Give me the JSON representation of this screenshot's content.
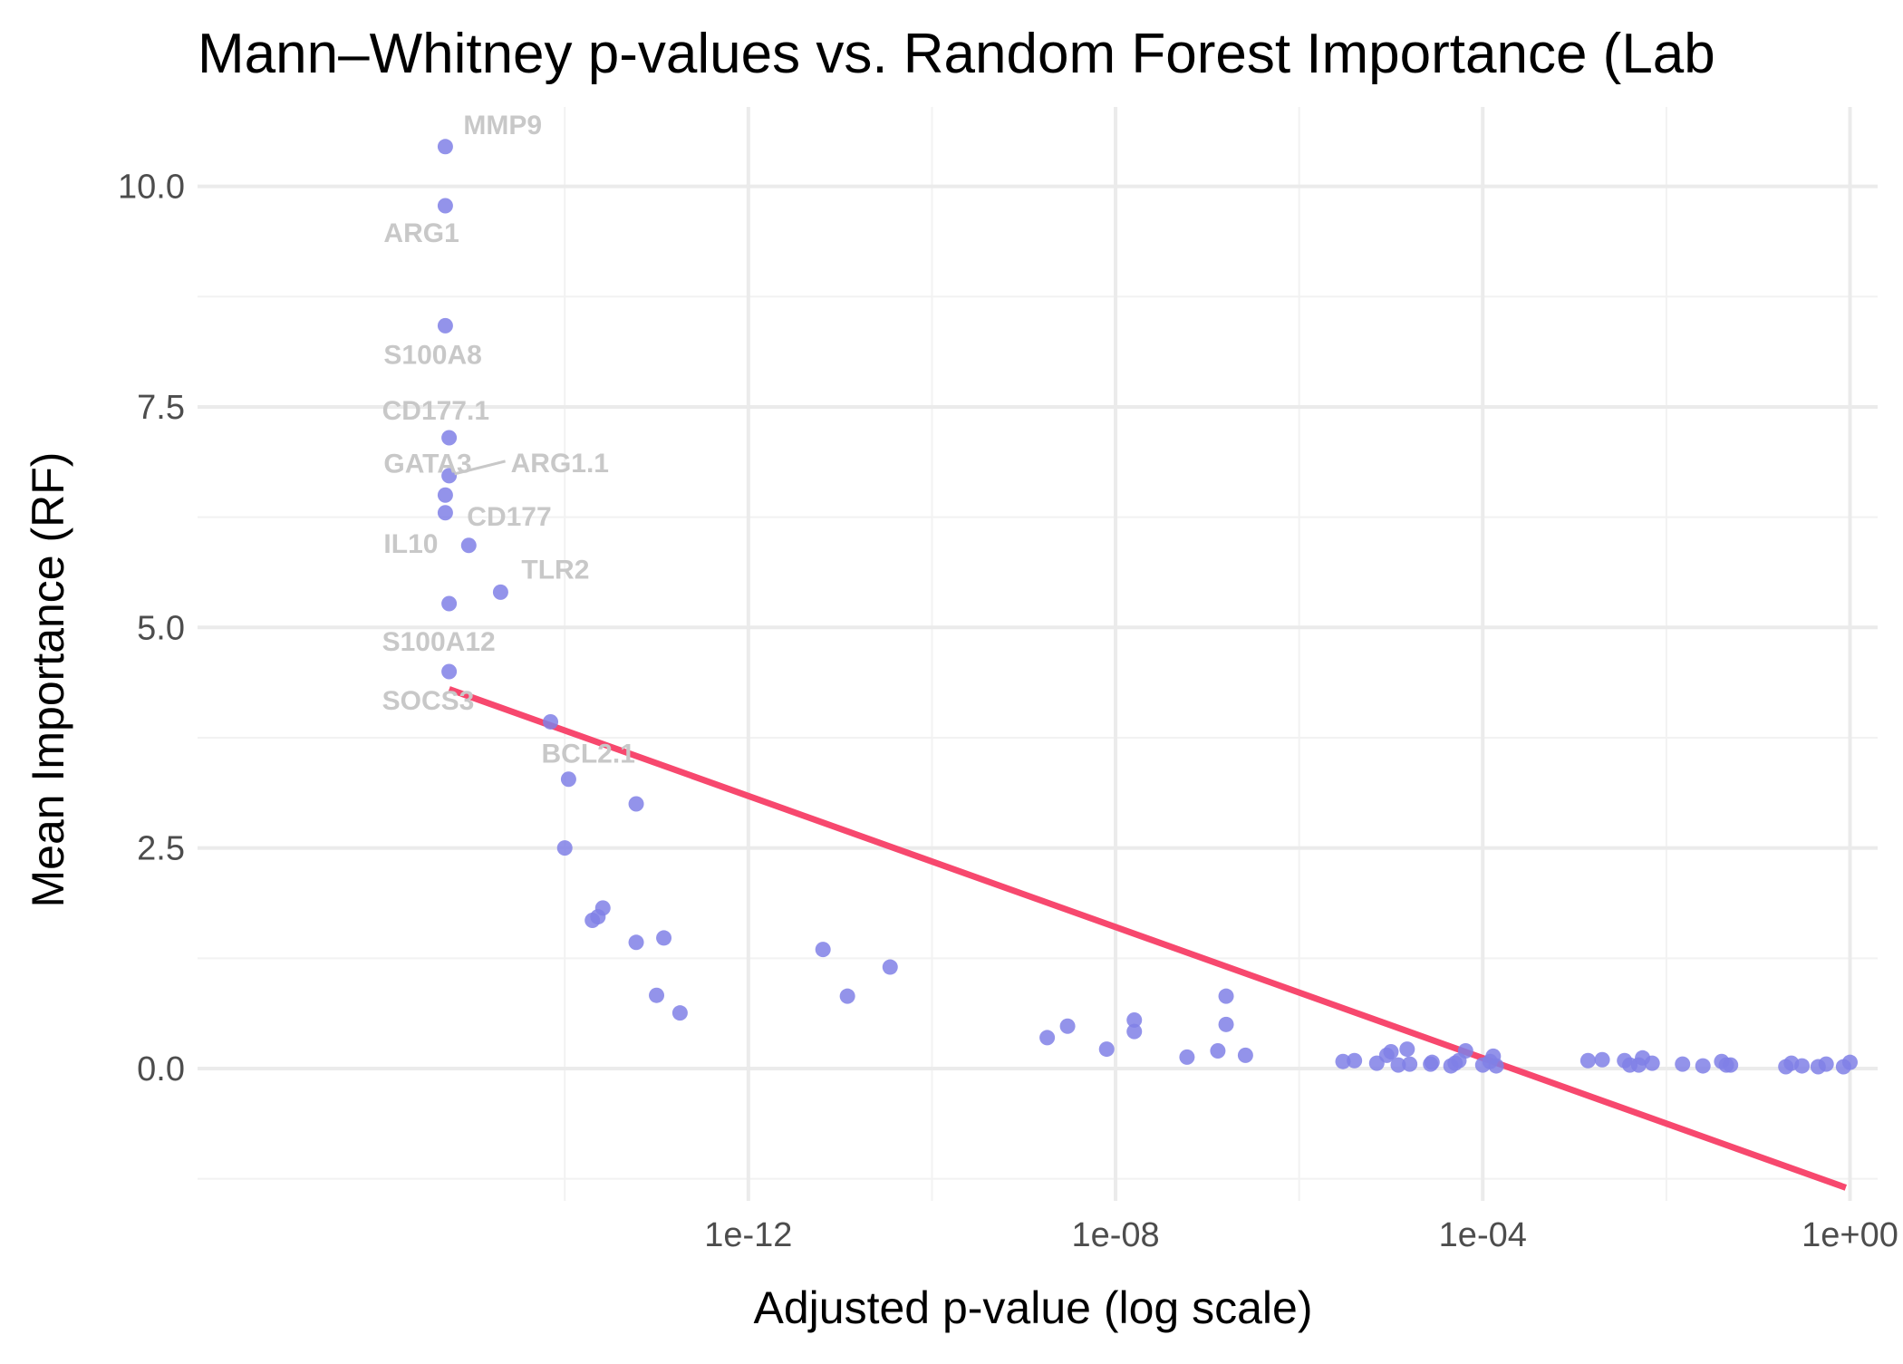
{
  "chart_data": {
    "type": "scatter",
    "title": "Mann–Whitney p-values vs. Random Forest Importance (Lab",
    "xlabel": "Adjusted p-value (log scale)",
    "ylabel": "Mean Importance (RF)",
    "x_scale": "log10",
    "xlim": [
      1e-18,
      2
    ],
    "ylim": [
      -1.5,
      10.9
    ],
    "x_ticks": [
      {
        "value": 1e-12,
        "label": "1e-12"
      },
      {
        "value": 1e-08,
        "label": "1e-08"
      },
      {
        "value": 0.0001,
        "label": "1e-04"
      },
      {
        "value": 1,
        "label": "1e+00"
      }
    ],
    "x_minor_ticks": [
      1e-14,
      1e-10,
      1e-06,
      0.01
    ],
    "y_ticks": [
      {
        "value": 0,
        "label": "0.0"
      },
      {
        "value": 2.5,
        "label": "2.5"
      },
      {
        "value": 5,
        "label": "5.0"
      },
      {
        "value": 7.5,
        "label": "7.5"
      },
      {
        "value": 10,
        "label": "10.0"
      }
    ],
    "y_minor_ticks": [
      -1.25,
      1.25,
      3.75,
      6.25,
      8.75
    ],
    "grid": true,
    "point_color": "#8080e6",
    "trend_color": "#f7486e",
    "trend_line": {
      "x": [
        5.5e-16,
        0.9
      ],
      "y": [
        4.3,
        -1.35
      ]
    },
    "points": [
      {
        "x": 5e-16,
        "y": 10.45,
        "label": "MMP9"
      },
      {
        "x": 5e-16,
        "y": 9.78,
        "label": "ARG1"
      },
      {
        "x": 5e-16,
        "y": 8.42,
        "label": "S100A8"
      },
      {
        "x": 5.5e-16,
        "y": 7.15,
        "label": "CD177.1"
      },
      {
        "x": 5.5e-16,
        "y": 6.72,
        "label": "ARG1.1"
      },
      {
        "x": 5e-16,
        "y": 6.5,
        "label": "GATA3"
      },
      {
        "x": 5e-16,
        "y": 6.3,
        "label": "IL10"
      },
      {
        "x": 9e-16,
        "y": 5.93,
        "label": "CD177"
      },
      {
        "x": 2e-15,
        "y": 5.4,
        "label": "TLR2"
      },
      {
        "x": 5.5e-16,
        "y": 5.27,
        "label": "S100A12"
      },
      {
        "x": 5.5e-16,
        "y": 4.5,
        "label": "SOCS3"
      },
      {
        "x": 7e-15,
        "y": 3.93,
        "label": "BCL2.1"
      },
      {
        "x": 1.1e-14,
        "y": 3.28
      },
      {
        "x": 6e-14,
        "y": 3.0
      },
      {
        "x": 1e-14,
        "y": 2.5
      },
      {
        "x": 2e-14,
        "y": 1.68
      },
      {
        "x": 2.6e-14,
        "y": 1.82
      },
      {
        "x": 2.3e-14,
        "y": 1.72
      },
      {
        "x": 6e-14,
        "y": 1.43
      },
      {
        "x": 1.2e-13,
        "y": 1.48
      },
      {
        "x": 1e-13,
        "y": 0.83
      },
      {
        "x": 1.8e-13,
        "y": 0.63
      },
      {
        "x": 6.5e-12,
        "y": 1.35
      },
      {
        "x": 1.2e-11,
        "y": 0.82
      },
      {
        "x": 3.5e-11,
        "y": 1.15
      },
      {
        "x": 1.8e-09,
        "y": 0.35
      },
      {
        "x": 3e-09,
        "y": 0.48
      },
      {
        "x": 8e-09,
        "y": 0.22
      },
      {
        "x": 1.6e-08,
        "y": 0.42
      },
      {
        "x": 1.6e-08,
        "y": 0.55
      },
      {
        "x": 6e-08,
        "y": 0.13
      },
      {
        "x": 1.3e-07,
        "y": 0.2
      },
      {
        "x": 1.6e-07,
        "y": 0.82
      },
      {
        "x": 1.6e-07,
        "y": 0.5
      },
      {
        "x": 2.6e-07,
        "y": 0.15
      },
      {
        "x": 3e-06,
        "y": 0.08
      },
      {
        "x": 4e-06,
        "y": 0.09
      },
      {
        "x": 7e-06,
        "y": 0.06
      },
      {
        "x": 9e-06,
        "y": 0.15
      },
      {
        "x": 1e-05,
        "y": 0.19
      },
      {
        "x": 1.2e-05,
        "y": 0.04
      },
      {
        "x": 1.5e-05,
        "y": 0.22
      },
      {
        "x": 1.6e-05,
        "y": 0.05
      },
      {
        "x": 2.7e-05,
        "y": 0.05
      },
      {
        "x": 2.8e-05,
        "y": 0.07
      },
      {
        "x": 4.5e-05,
        "y": 0.03
      },
      {
        "x": 5e-05,
        "y": 0.06
      },
      {
        "x": 5.5e-05,
        "y": 0.09
      },
      {
        "x": 6.5e-05,
        "y": 0.2
      },
      {
        "x": 0.0001,
        "y": 0.04
      },
      {
        "x": 0.00012,
        "y": 0.08
      },
      {
        "x": 0.00013,
        "y": 0.14
      },
      {
        "x": 0.00014,
        "y": 0.03
      },
      {
        "x": 0.0014,
        "y": 0.09
      },
      {
        "x": 0.002,
        "y": 0.1
      },
      {
        "x": 0.0035,
        "y": 0.09
      },
      {
        "x": 0.004,
        "y": 0.04
      },
      {
        "x": 0.005,
        "y": 0.04
      },
      {
        "x": 0.0055,
        "y": 0.12
      },
      {
        "x": 0.007,
        "y": 0.06
      },
      {
        "x": 0.015,
        "y": 0.05
      },
      {
        "x": 0.025,
        "y": 0.03
      },
      {
        "x": 0.04,
        "y": 0.08
      },
      {
        "x": 0.045,
        "y": 0.04
      },
      {
        "x": 0.05,
        "y": 0.04
      },
      {
        "x": 0.2,
        "y": 0.02
      },
      {
        "x": 0.23,
        "y": 0.06
      },
      {
        "x": 0.3,
        "y": 0.03
      },
      {
        "x": 0.45,
        "y": 0.02
      },
      {
        "x": 0.55,
        "y": 0.05
      },
      {
        "x": 0.85,
        "y": 0.02
      },
      {
        "x": 1.0,
        "y": 0.07
      }
    ]
  }
}
